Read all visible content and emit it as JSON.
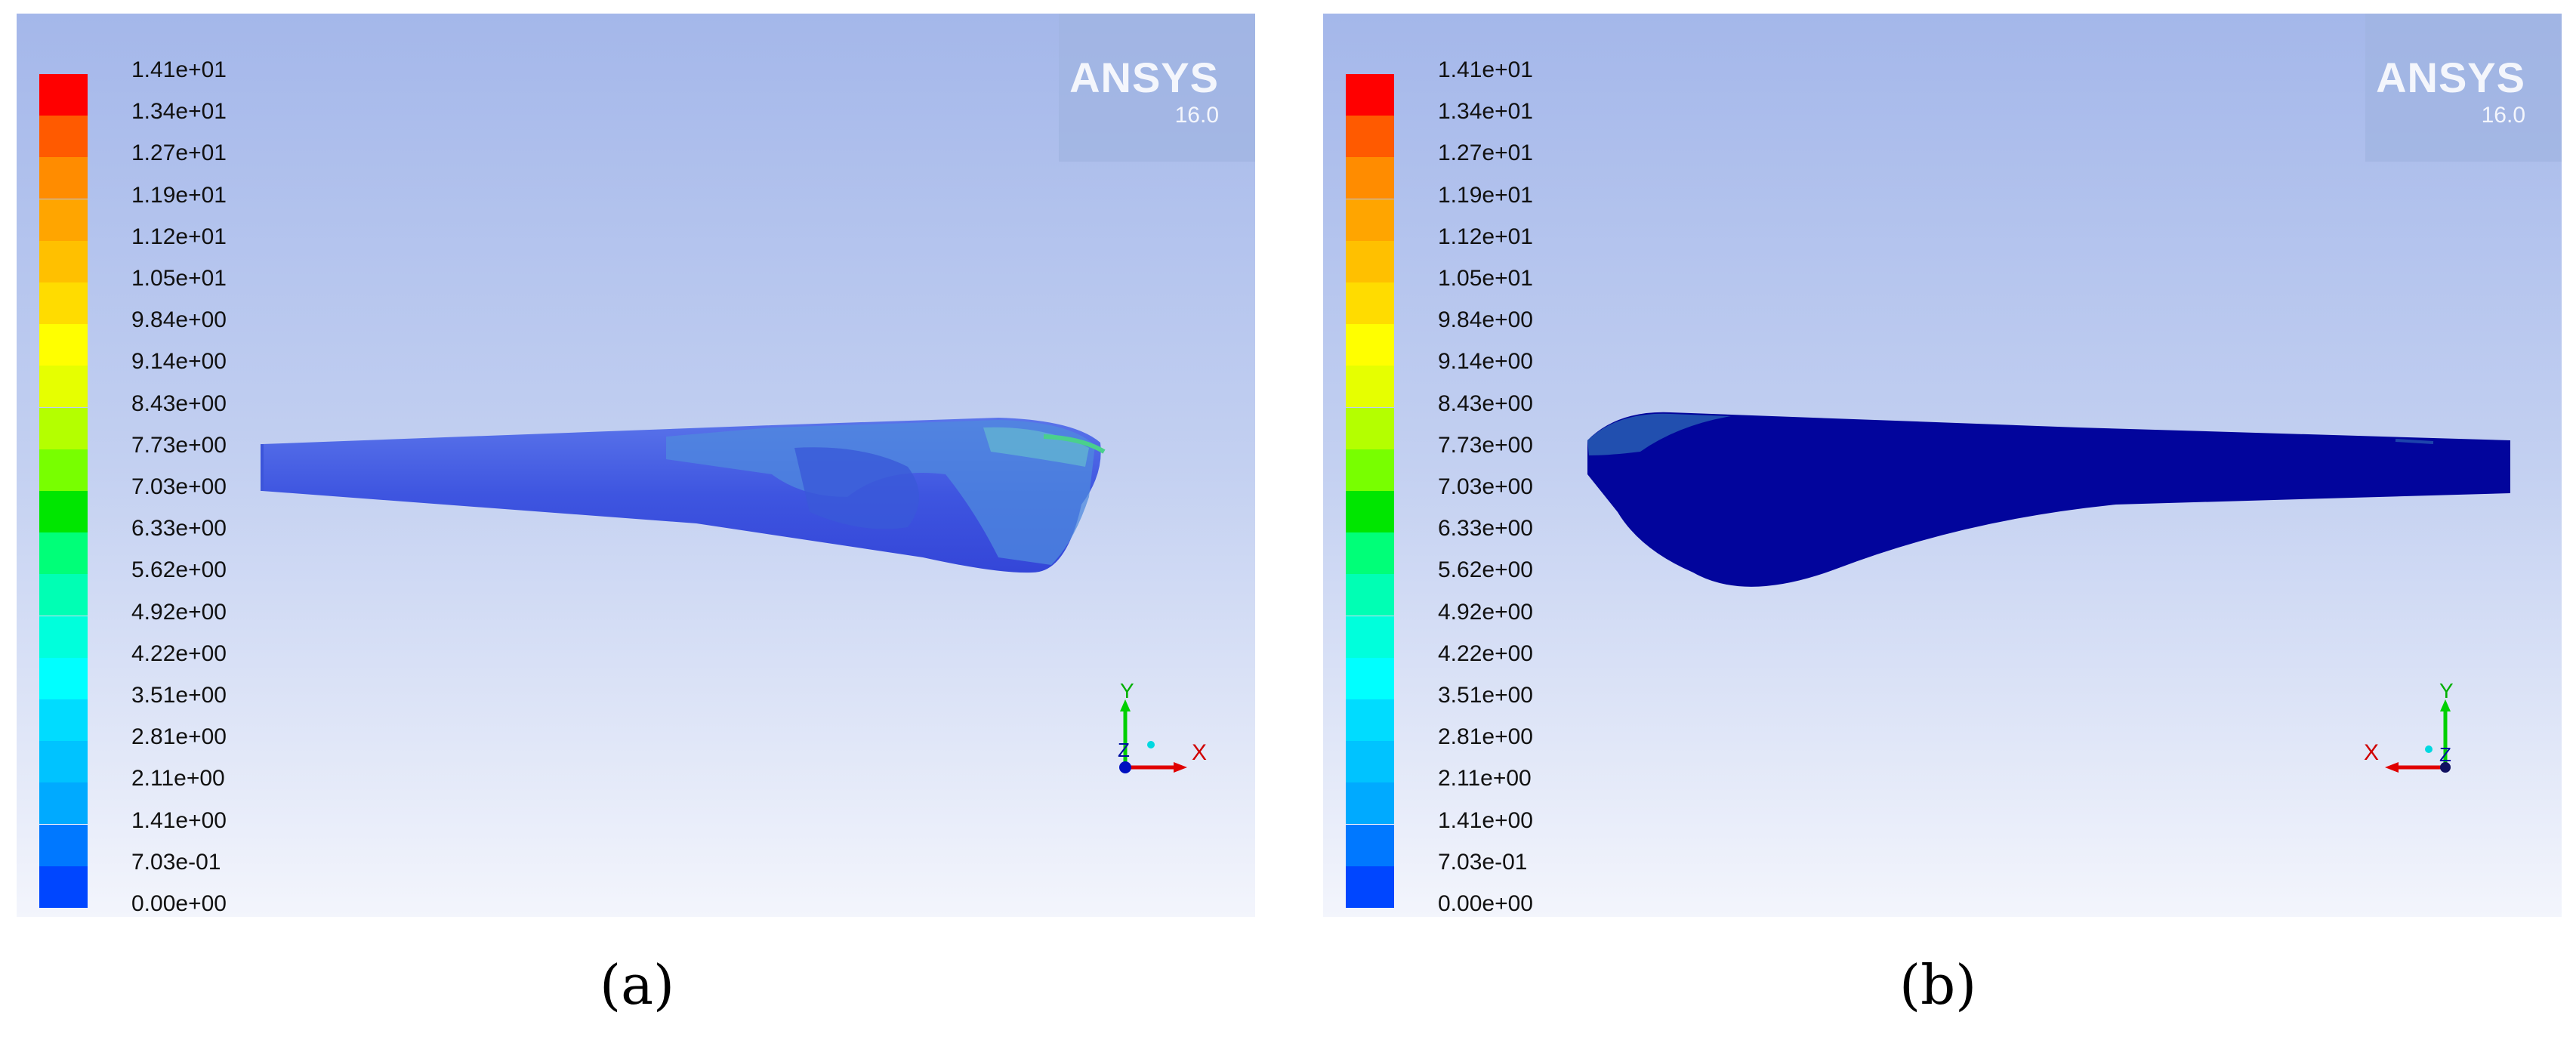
{
  "legend_ticks": [
    "1.41e+01",
    "1.34e+01",
    "1.27e+01",
    "1.19e+01",
    "1.12e+01",
    "1.05e+01",
    "9.84e+00",
    "9.14e+00",
    "8.43e+00",
    "7.73e+00",
    "7.03e+00",
    "6.33e+00",
    "5.62e+00",
    "4.92e+00",
    "4.22e+00",
    "3.51e+00",
    "2.81e+00",
    "2.11e+00",
    "1.41e+00",
    "7.03e-01",
    "0.00e+00"
  ],
  "legend_colors": [
    "#ff0000",
    "#ff5a00",
    "#ff8c00",
    "#ffa500",
    "#ffc000",
    "#ffdc00",
    "#ffff00",
    "#e6ff00",
    "#b4ff00",
    "#78ff00",
    "#00e600",
    "#00ff78",
    "#00ffb4",
    "#00ffdc",
    "#00ffff",
    "#00dcff",
    "#00c3ff",
    "#00aaff",
    "#0078ff",
    "#0046ff"
  ],
  "logo": {
    "name": "ANSYS",
    "version": "16.0"
  },
  "axes": {
    "x": "X",
    "y": "Y",
    "z": "Z"
  },
  "panels": {
    "a": {
      "caption": "(a)"
    },
    "b": {
      "caption": "(b)"
    }
  }
}
